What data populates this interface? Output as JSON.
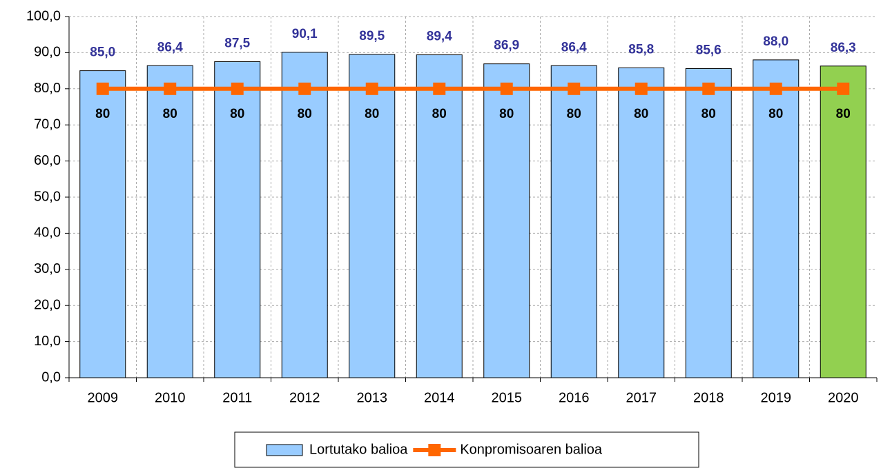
{
  "chart_data": {
    "type": "bar",
    "categories": [
      "2009",
      "2010",
      "2011",
      "2012",
      "2013",
      "2014",
      "2015",
      "2016",
      "2017",
      "2018",
      "2019",
      "2020"
    ],
    "series": [
      {
        "name": "Lortutako balioa",
        "type": "bar",
        "color": "#99ccff",
        "colors": [
          "#99ccff",
          "#99ccff",
          "#99ccff",
          "#99ccff",
          "#99ccff",
          "#99ccff",
          "#99ccff",
          "#99ccff",
          "#99ccff",
          "#99ccff",
          "#99ccff",
          "#92d050"
        ],
        "values": [
          85.0,
          86.4,
          87.5,
          90.1,
          89.5,
          89.4,
          86.9,
          86.4,
          85.8,
          85.6,
          88.0,
          86.3
        ],
        "value_labels": [
          "85,0",
          "86,4",
          "87,5",
          "90,1",
          "89,5",
          "89,4",
          "86,9",
          "86,4",
          "85,8",
          "85,6",
          "88,0",
          "86,3"
        ]
      },
      {
        "name": "Konpromisoaren balioa",
        "type": "line",
        "color": "#ff6600",
        "values": [
          80,
          80,
          80,
          80,
          80,
          80,
          80,
          80,
          80,
          80,
          80,
          80
        ]
      }
    ],
    "ylim": [
      0,
      100
    ],
    "yticks": [
      {
        "value": 0,
        "label": "0,0"
      },
      {
        "value": 10,
        "label": "10,0"
      },
      {
        "value": 20,
        "label": "20,0"
      },
      {
        "value": 30,
        "label": "30,0"
      },
      {
        "value": 40,
        "label": "40,0"
      },
      {
        "value": 50,
        "label": "50,0"
      },
      {
        "value": 60,
        "label": "60,0"
      },
      {
        "value": 70,
        "label": "70,0"
      },
      {
        "value": 80,
        "label": "80,0"
      },
      {
        "value": 90,
        "label": "90,0"
      },
      {
        "value": 100,
        "label": "100,0"
      }
    ],
    "grid": true,
    "legend": "bottom"
  }
}
